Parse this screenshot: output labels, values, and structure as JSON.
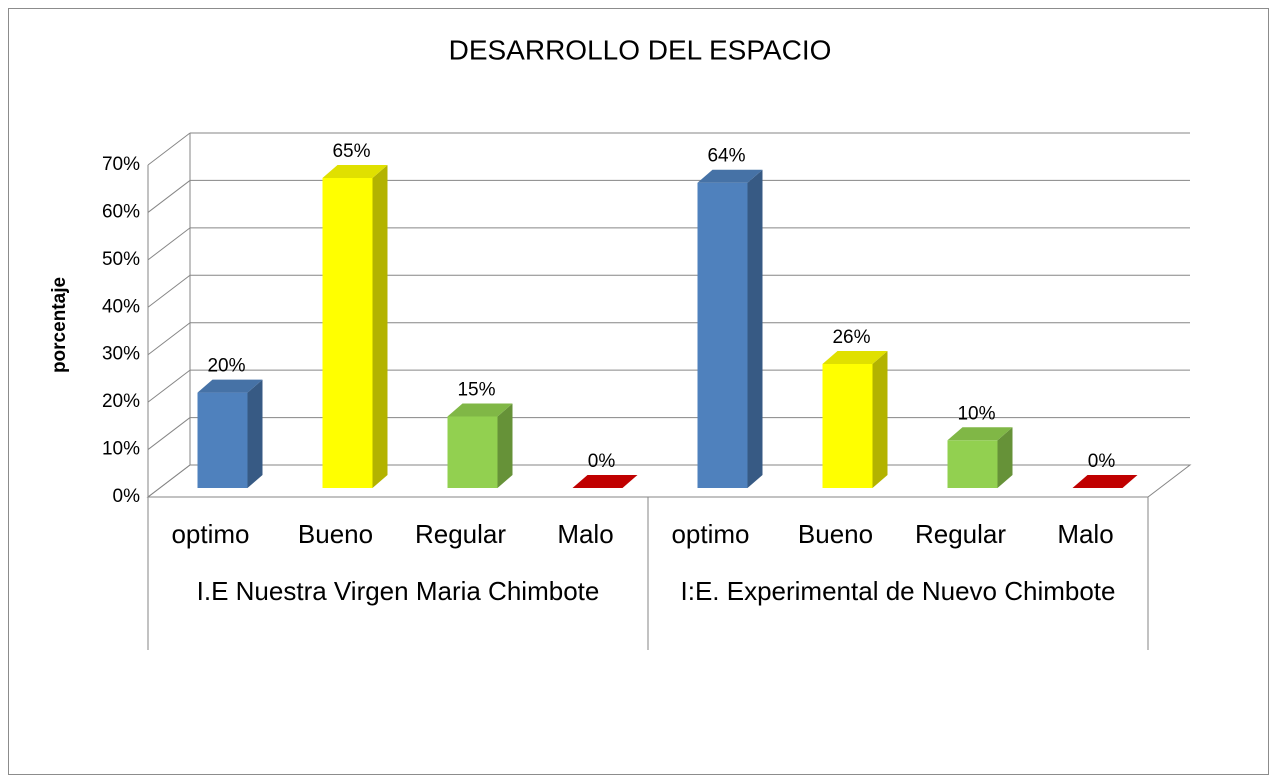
{
  "chart_data": {
    "type": "bar3d",
    "title": "DESARROLLO DEL ESPACIO",
    "y_label": "porcentaje",
    "ylim": [
      0,
      70
    ],
    "yticks": [
      {
        "value": 0,
        "label": "0%"
      },
      {
        "value": 10,
        "label": "10%"
      },
      {
        "value": 20,
        "label": "20%"
      },
      {
        "value": 30,
        "label": "30%"
      },
      {
        "value": 40,
        "label": "40%"
      },
      {
        "value": 50,
        "label": "50%"
      },
      {
        "value": 60,
        "label": "60%"
      },
      {
        "value": 70,
        "label": "70%"
      }
    ],
    "grid": true,
    "colors": [
      "#4f81bd",
      "#ffff00",
      "#92d050",
      "#c00000"
    ],
    "groups": [
      {
        "label": "I.E Nuestra  Virgen Maria Chimbote",
        "categories": [
          "optimo",
          "Bueno",
          "Regular",
          "Malo"
        ],
        "values": [
          20,
          65,
          15,
          0
        ],
        "value_labels": [
          "20%",
          "65%",
          "15%",
          "0%"
        ]
      },
      {
        "label": "I:E. Experimental  de Nuevo Chimbote",
        "categories": [
          "optimo",
          "Bueno",
          "Regular",
          "Malo"
        ],
        "values": [
          64,
          26,
          10,
          0
        ],
        "value_labels": [
          "64%",
          "26%",
          "10%",
          "0%"
        ]
      }
    ]
  }
}
